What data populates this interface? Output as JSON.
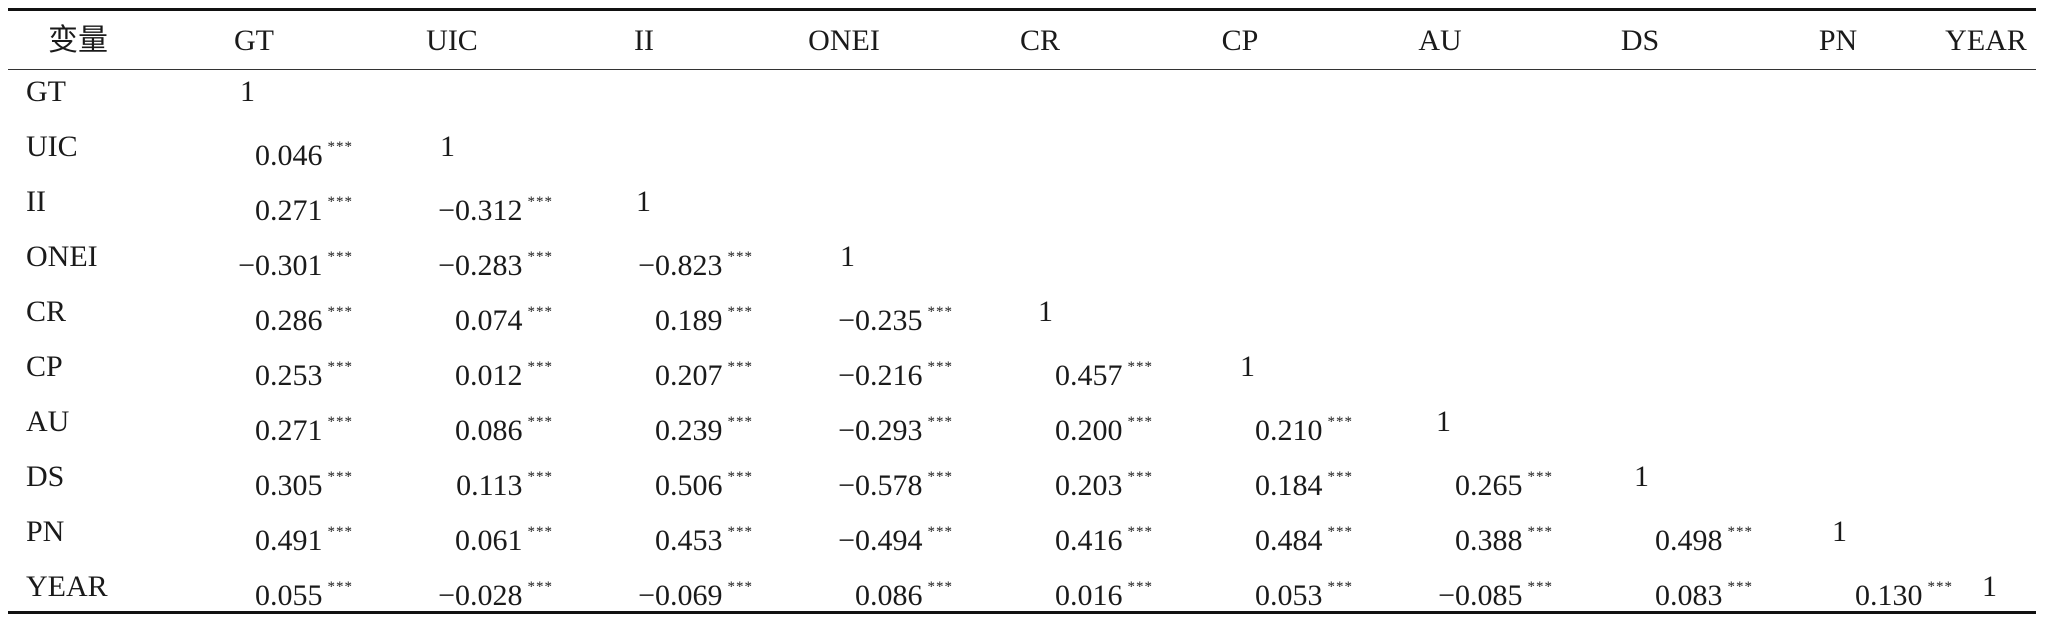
{
  "headers": [
    "变量",
    "GT",
    "UIC",
    "II",
    "ONEI",
    "CR",
    "CP",
    "AU",
    "DS",
    "PN",
    "YEAR"
  ],
  "rows": [
    {
      "label": "GT",
      "values": [
        "1"
      ]
    },
    {
      "label": "UIC",
      "values": [
        "0.046",
        "1"
      ]
    },
    {
      "label": "II",
      "values": [
        "0.271",
        "−0.312",
        "1"
      ]
    },
    {
      "label": "ONEI",
      "values": [
        "−0.301",
        "−0.283",
        "−0.823",
        "1"
      ]
    },
    {
      "label": "CR",
      "values": [
        "0.286",
        "0.074",
        "0.189",
        "−0.235",
        "1"
      ]
    },
    {
      "label": "CP",
      "values": [
        "0.253",
        "0.012",
        "0.207",
        "−0.216",
        "0.457",
        "1"
      ]
    },
    {
      "label": "AU",
      "values": [
        "0.271",
        "0.086",
        "0.239",
        "−0.293",
        "0.200",
        "0.210",
        "1"
      ]
    },
    {
      "label": "DS",
      "values": [
        "0.305",
        "0.113",
        "0.506",
        "−0.578",
        "0.203",
        "0.184",
        "0.265",
        "1"
      ]
    },
    {
      "label": "PN",
      "values": [
        "0.491",
        "0.061",
        "0.453",
        "−0.494",
        "0.416",
        "0.484",
        "0.388",
        "0.498",
        "1"
      ]
    },
    {
      "label": "YEAR",
      "values": [
        "0.055",
        "−0.028",
        "−0.069",
        "0.086",
        "0.016",
        "0.053",
        "−0.085",
        "0.083",
        "0.130",
        "1"
      ]
    }
  ],
  "significance_mark": "***"
}
